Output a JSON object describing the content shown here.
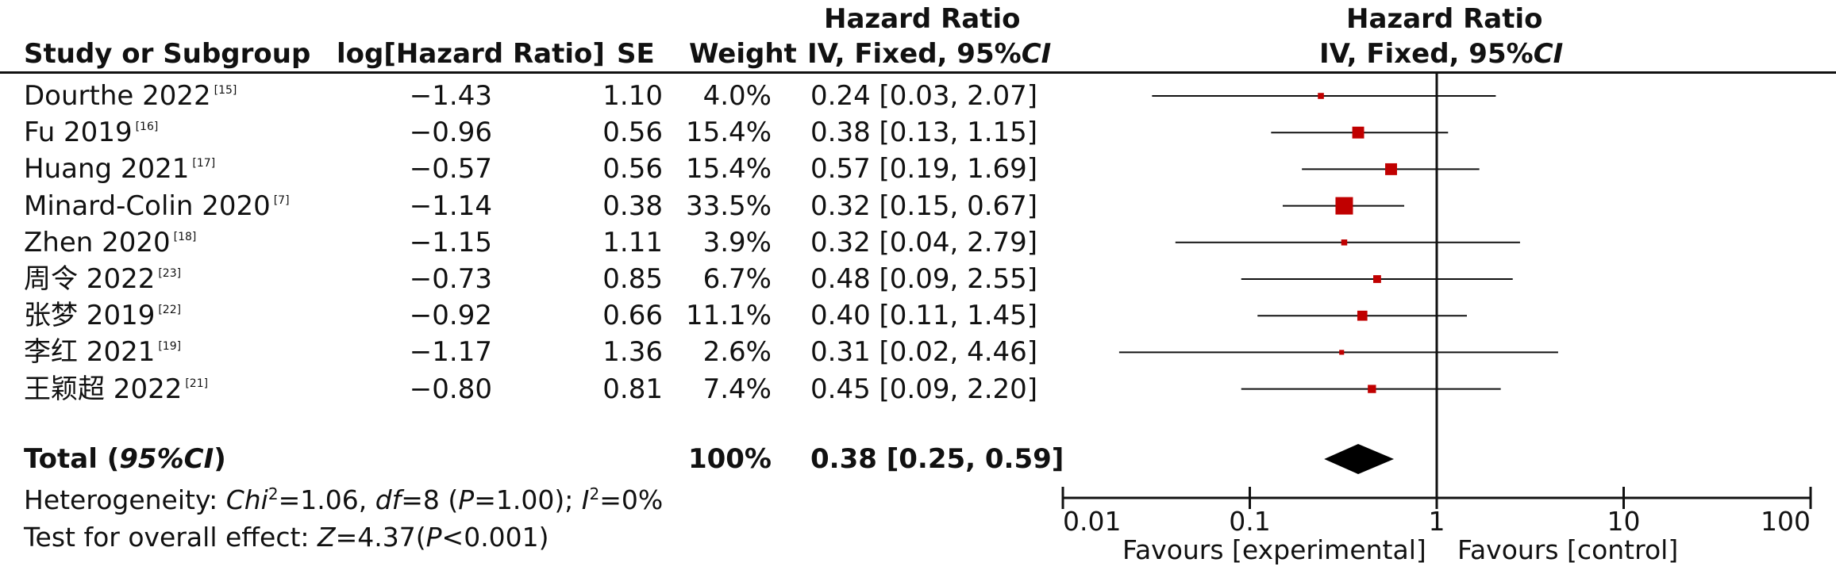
{
  "headers": {
    "study": "Study or Subgroup",
    "loghr": "log[Hazard Ratio]",
    "se": "SE",
    "weight": "Weight",
    "hr_line1": "Hazard Ratio",
    "hr_line2_text": "IV, Fixed, 95%",
    "hr_line2_ci": "CI",
    "plot_line1": "Hazard Ratio",
    "plot_line2_text": "IV, Fixed, 95%",
    "plot_line2_ci": "CI"
  },
  "total": {
    "label_text": "Total (",
    "label_ci": "95%CI",
    "label_close": ")",
    "weight": "100%",
    "ci": "0.38 [0.25, 0.59]"
  },
  "heterogeneity": {
    "prefix": "Heterogeneity: ",
    "chi": "Chi",
    "chi_sup": "2",
    "chi_val": "=1.06, ",
    "df": "df",
    "df_val": "=8 (",
    "p": "P",
    "p_val": "=1.00); ",
    "i": "I",
    "i_sup": "2",
    "i_val": "=0%"
  },
  "overall": {
    "prefix": "Test for overall effect: ",
    "z": "Z",
    "z_val": "=4.37(",
    "p": "P",
    "p_val": "<0.001)"
  },
  "favours": {
    "left": "Favours [experimental]",
    "right": "Favours [control]"
  },
  "colors": {
    "marker": "#c00000",
    "line": "#111111"
  },
  "chart_data": {
    "type": "forest",
    "scale": "log",
    "xlim": [
      0.01,
      100
    ],
    "null_line": 1,
    "ticks": [
      "0.01",
      "0.1",
      "1",
      "10",
      "100"
    ],
    "studies": [
      {
        "name": "Dourthe 2022",
        "ref": "[15]",
        "loghr": "−1.43",
        "se": "1.10",
        "weight": "4.0%",
        "ci_text": "0.24 [0.03, 2.07]",
        "hr": 0.24,
        "lo": 0.03,
        "hi": 2.07,
        "w": 4.0
      },
      {
        "name": "Fu 2019",
        "ref": "[16]",
        "loghr": "−0.96",
        "se": "0.56",
        "weight": "15.4%",
        "ci_text": "0.38 [0.13, 1.15]",
        "hr": 0.38,
        "lo": 0.13,
        "hi": 1.15,
        "w": 15.4
      },
      {
        "name": "Huang 2021",
        "ref": "[17]",
        "loghr": "−0.57",
        "se": "0.56",
        "weight": "15.4%",
        "ci_text": "0.57 [0.19, 1.69]",
        "hr": 0.57,
        "lo": 0.19,
        "hi": 1.69,
        "w": 15.4
      },
      {
        "name": "Minard-Colin 2020",
        "ref": "[7]",
        "loghr": "−1.14",
        "se": "0.38",
        "weight": "33.5%",
        "ci_text": "0.32 [0.15, 0.67]",
        "hr": 0.32,
        "lo": 0.15,
        "hi": 0.67,
        "w": 33.5
      },
      {
        "name": "Zhen 2020",
        "ref": "[18]",
        "loghr": "−1.15",
        "se": "1.11",
        "weight": "3.9%",
        "ci_text": "0.32 [0.04, 2.79]",
        "hr": 0.32,
        "lo": 0.04,
        "hi": 2.79,
        "w": 3.9
      },
      {
        "name": "周令 2022",
        "ref": "[23]",
        "loghr": "−0.73",
        "se": "0.85",
        "weight": "6.7%",
        "ci_text": "0.48 [0.09, 2.55]",
        "hr": 0.48,
        "lo": 0.09,
        "hi": 2.55,
        "w": 6.7
      },
      {
        "name": "张梦 2019",
        "ref": "[22]",
        "loghr": "−0.92",
        "se": "0.66",
        "weight": "11.1%",
        "ci_text": "0.40 [0.11, 1.45]",
        "hr": 0.4,
        "lo": 0.11,
        "hi": 1.45,
        "w": 11.1
      },
      {
        "name": "李红 2021",
        "ref": "[19]",
        "loghr": "−1.17",
        "se": "1.36",
        "weight": "2.6%",
        "ci_text": "0.31 [0.02, 4.46]",
        "hr": 0.31,
        "lo": 0.02,
        "hi": 4.46,
        "w": 2.6
      },
      {
        "name": "王颖超 2022",
        "ref": "[21]",
        "loghr": "−0.80",
        "se": "0.81",
        "weight": "7.4%",
        "ci_text": "0.45 [0.09, 2.20]",
        "hr": 0.45,
        "lo": 0.09,
        "hi": 2.2,
        "w": 7.4
      }
    ],
    "pooled": {
      "hr": 0.38,
      "lo": 0.25,
      "hi": 0.59
    }
  }
}
